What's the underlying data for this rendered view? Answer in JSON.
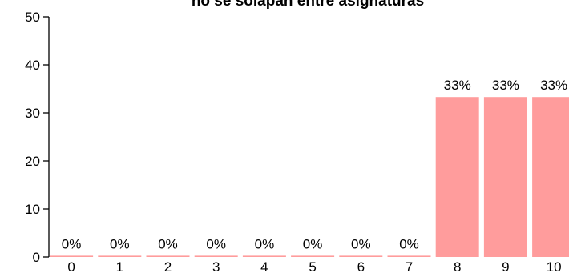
{
  "chart_data": {
    "type": "bar",
    "title": "no se solapan entre asignaturas",
    "xlabel": "",
    "ylabel": "",
    "categories": [
      "0",
      "1",
      "2",
      "3",
      "4",
      "5",
      "6",
      "7",
      "8",
      "9",
      "10"
    ],
    "values": [
      0,
      0,
      0,
      0,
      0,
      0,
      0,
      0,
      33.3,
      33.3,
      33.3
    ],
    "data_labels": [
      "0%",
      "0%",
      "0%",
      "0%",
      "0%",
      "0%",
      "0%",
      "0%",
      "33%",
      "33%",
      "33%"
    ],
    "ylim": [
      0,
      50
    ],
    "yticks": [
      "0",
      "10",
      "20",
      "30",
      "40",
      "50"
    ],
    "bar_color": "#ff9c9c",
    "grid": false,
    "legend": "none"
  }
}
